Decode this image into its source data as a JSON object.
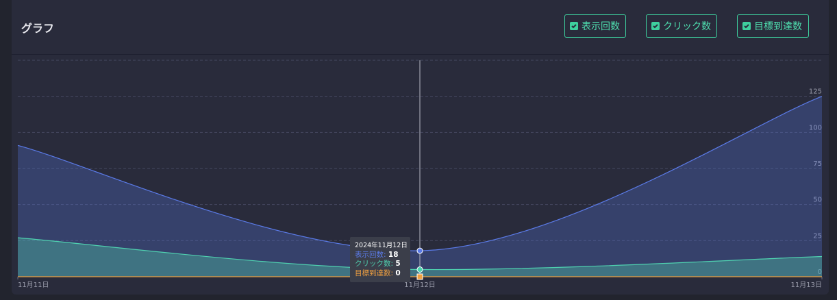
{
  "header": {
    "title": "グラフ",
    "toggles": [
      "表示回数",
      "クリック数",
      "目標到達数"
    ]
  },
  "chart_data": {
    "type": "area",
    "categories": [
      "11月11日",
      "11月12日",
      "11月13日"
    ],
    "series": [
      {
        "name": "表示回数",
        "color": "#5b7be8",
        "values": [
          91,
          18,
          125
        ]
      },
      {
        "name": "クリック数",
        "color": "#4fd1b0",
        "values": [
          27,
          5,
          14
        ]
      },
      {
        "name": "目標到達数",
        "color": "#f0a040",
        "values": [
          0,
          0,
          0
        ]
      }
    ],
    "ylim": [
      0,
      150
    ],
    "yticks": [
      0,
      25,
      50,
      75,
      100,
      125
    ],
    "grid": true,
    "tooltip": {
      "title": "2024年11月12日",
      "index": 1
    }
  }
}
